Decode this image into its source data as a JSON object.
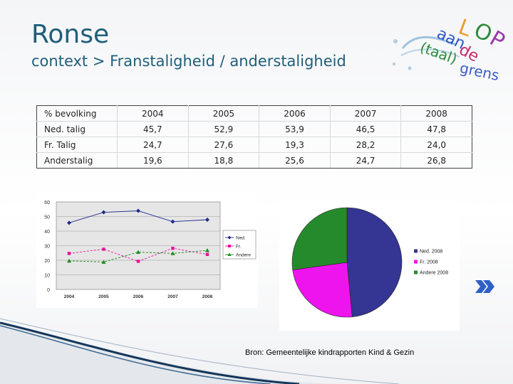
{
  "slide": {
    "title": "Ronse",
    "subtitle": "context > Franstaligheid / anderstaligheid",
    "logo_text": [
      "LOP",
      "aan de",
      "(taal)grens"
    ],
    "source": "Bron: Gemeentelijke kindrapporten Kind & Gezin"
  },
  "table": {
    "header": [
      "% bevolking",
      "2004",
      "2005",
      "2006",
      "2007",
      "2008"
    ],
    "rows": [
      [
        "Ned. talig",
        "45,7",
        "52,9",
        "53,9",
        "46,5",
        "47,8"
      ],
      [
        "Fr. Talig",
        "24,7",
        "27,6",
        "19,3",
        "28,2",
        "24,0"
      ],
      [
        "Anderstalig",
        "19,6",
        "18,8",
        "25,6",
        "24,7",
        "26,8"
      ]
    ]
  },
  "chart_data": [
    {
      "type": "line",
      "x": [
        "2004",
        "2005",
        "2006",
        "2007",
        "2008"
      ],
      "ylim": [
        0,
        60
      ],
      "yticks": [
        "0",
        "10",
        "20",
        "30",
        "40",
        "50",
        "60"
      ],
      "legend_position": "right",
      "series": [
        {
          "name": "Ned.",
          "values": [
            45.7,
            52.9,
            53.9,
            46.5,
            47.8
          ],
          "color": "#1f2a8a",
          "marker": "diamond"
        },
        {
          "name": "Fr.",
          "values": [
            24.7,
            27.6,
            19.3,
            28.2,
            24.0
          ],
          "color": "#e8109a",
          "marker": "square"
        },
        {
          "name": "Andere",
          "values": [
            19.6,
            18.8,
            25.6,
            24.7,
            26.8
          ],
          "color": "#1a8a1a",
          "marker": "triangle"
        }
      ]
    },
    {
      "type": "pie",
      "labels": [
        "Ned. 2008",
        "Fr. 2008",
        "Andere 2008"
      ],
      "values": [
        47.8,
        24.0,
        26.8
      ],
      "colors": [
        "#353594",
        "#ee14ee",
        "#258a2c"
      ],
      "legend_position": "right"
    }
  ]
}
